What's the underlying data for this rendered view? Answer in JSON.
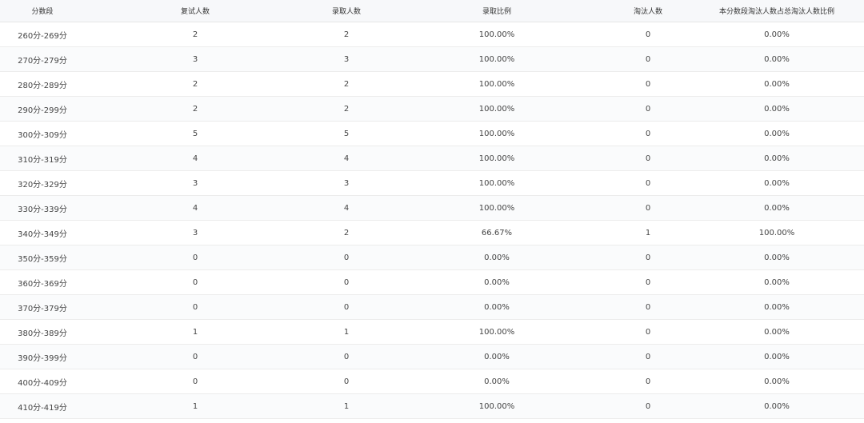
{
  "table": {
    "columns": [
      "分数段",
      "复试人数",
      "录取人数",
      "录取比例",
      "淘汰人数",
      "本分数段淘汰人数占总淘汰人数比例"
    ],
    "rows": [
      [
        "260分-269分",
        "2",
        "2",
        "100.00%",
        "0",
        "0.00%"
      ],
      [
        "270分-279分",
        "3",
        "3",
        "100.00%",
        "0",
        "0.00%"
      ],
      [
        "280分-289分",
        "2",
        "2",
        "100.00%",
        "0",
        "0.00%"
      ],
      [
        "290分-299分",
        "2",
        "2",
        "100.00%",
        "0",
        "0.00%"
      ],
      [
        "300分-309分",
        "5",
        "5",
        "100.00%",
        "0",
        "0.00%"
      ],
      [
        "310分-319分",
        "4",
        "4",
        "100.00%",
        "0",
        "0.00%"
      ],
      [
        "320分-329分",
        "3",
        "3",
        "100.00%",
        "0",
        "0.00%"
      ],
      [
        "330分-339分",
        "4",
        "4",
        "100.00%",
        "0",
        "0.00%"
      ],
      [
        "340分-349分",
        "3",
        "2",
        "66.67%",
        "1",
        "100.00%"
      ],
      [
        "350分-359分",
        "0",
        "0",
        "0.00%",
        "0",
        "0.00%"
      ],
      [
        "360分-369分",
        "0",
        "0",
        "0.00%",
        "0",
        "0.00%"
      ],
      [
        "370分-379分",
        "0",
        "0",
        "0.00%",
        "0",
        "0.00%"
      ],
      [
        "380分-389分",
        "1",
        "1",
        "100.00%",
        "0",
        "0.00%"
      ],
      [
        "390分-399分",
        "0",
        "0",
        "0.00%",
        "0",
        "0.00%"
      ],
      [
        "400分-409分",
        "0",
        "0",
        "0.00%",
        "0",
        "0.00%"
      ],
      [
        "410分-419分",
        "1",
        "1",
        "100.00%",
        "0",
        "0.00%"
      ]
    ]
  }
}
